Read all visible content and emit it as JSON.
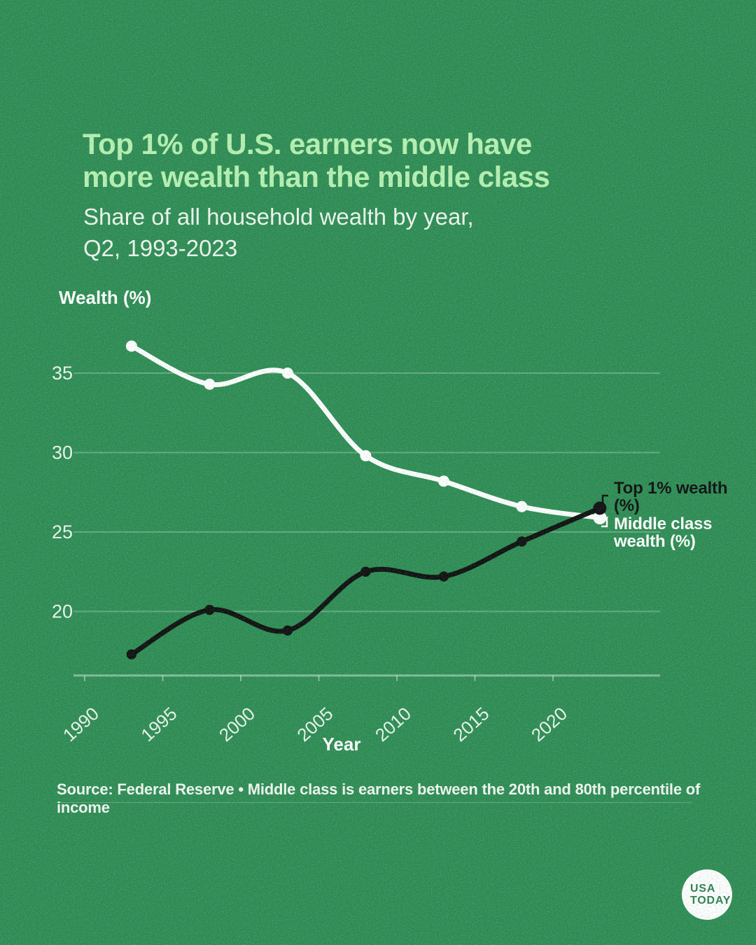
{
  "header": {
    "title_line1": "Top 1% of U.S. earners now have",
    "title_line2": "more wealth than the middle class",
    "subtitle_line1": "Share of all household wealth by year,",
    "subtitle_line2": "Q2, 1993-2023"
  },
  "chart_data": {
    "type": "line",
    "title": "Top 1% of U.S. earners now have more wealth than the middle class",
    "subtitle": "Share of all household wealth by year, Q2, 1993-2023",
    "xlabel": "Year",
    "ylabel": "Wealth (%)",
    "x": [
      1993,
      1998,
      2003,
      2008,
      2013,
      2018,
      2023
    ],
    "series": [
      {
        "name": "Middle class wealth (%)",
        "color": "#ffffff",
        "values": [
          36.7,
          34.3,
          35.0,
          29.8,
          28.2,
          26.6,
          25.9
        ]
      },
      {
        "name": "Top 1% wealth (%)",
        "color": "#0d0d0d",
        "values": [
          17.3,
          20.1,
          18.8,
          22.5,
          22.2,
          24.4,
          26.5
        ]
      }
    ],
    "x_ticks": [
      1990,
      1995,
      2000,
      2005,
      2010,
      2015,
      2020
    ],
    "y_ticks": [
      20,
      25,
      30,
      35
    ],
    "ylim": [
      16,
      38.5
    ],
    "xlim": [
      1989,
      2027
    ],
    "grid": "horizontal",
    "legend_position": "line-end-labels"
  },
  "annotations": {
    "top1_line1": "Top 1% wealth",
    "top1_line2": "(%)",
    "middle_line1": "Middle class",
    "middle_line2": "wealth (%)"
  },
  "footer": {
    "source": "Source: Federal Reserve • Middle class is earners between the 20th and 80th percentile of income"
  },
  "logo": {
    "line1": "USA",
    "line2": "TODAY"
  },
  "colors": {
    "background": "#2e8b53",
    "title": "#b8f1b2",
    "subtitle": "#f0f7ef",
    "grid": "rgba(255,255,255,0.26)",
    "axis": "rgba(240,250,242,0.45)",
    "tick_label": "#eef6ee",
    "middle_class_line": "#ffffff",
    "top1_line": "#0d0d0d",
    "logo_text": "#2e7f4f"
  }
}
